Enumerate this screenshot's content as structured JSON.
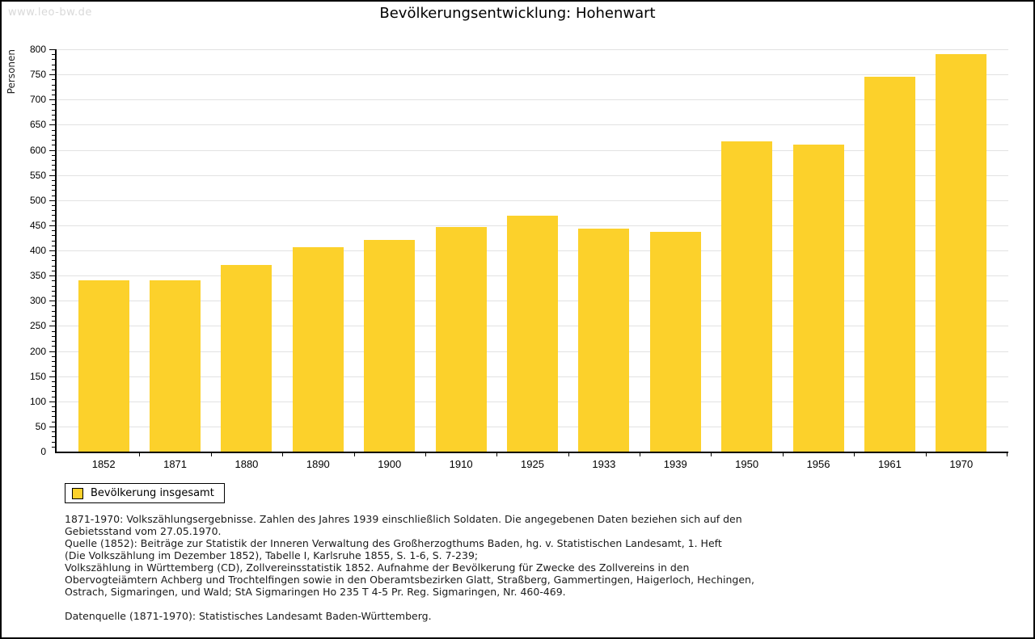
{
  "page": {
    "watermark": "www.leo-bw.de",
    "title": "Bevölkerungsentwicklung: Hohenwart"
  },
  "chart_data": {
    "type": "bar",
    "title": "Bevölkerungsentwicklung: Hohenwart",
    "xlabel": "",
    "ylabel": "Personen",
    "ylim": [
      0,
      800
    ],
    "ytick_step": 50,
    "yminor_step": 10,
    "grid": true,
    "legend_position": "bottom-left",
    "bar_color": "#fcd12b",
    "categories": [
      "1852",
      "1871",
      "1880",
      "1890",
      "1900",
      "1910",
      "1925",
      "1933",
      "1939",
      "1950",
      "1956",
      "1961",
      "1970"
    ],
    "series": [
      {
        "name": "Bevölkerung insgesamt",
        "values": [
          340,
          340,
          371,
          406,
          421,
          447,
          469,
          443,
          437,
          617,
          611,
          746,
          790
        ]
      }
    ]
  },
  "legend": {
    "label": "Bevölkerung insgesamt"
  },
  "footnotes": {
    "lines": [
      "1871-1970: Volkszählungsergebnisse. Zahlen des Jahres 1939 einschließlich Soldaten. Die angegebenen Daten beziehen sich auf den",
      "Gebietsstand vom 27.05.1970.",
      "Quelle (1852): Beiträge zur Statistik der Inneren Verwaltung des Großherzogthums Baden, hg. v. Statistischen Landesamt, 1. Heft",
      "(Die Volkszählung im Dezember 1852), Tabelle I, Karlsruhe 1855, S. 1-6, S. 7-239;",
      "Volkszählung in Württemberg (CD), Zollvereinsstatistik 1852. Aufnahme der Bevölkerung für Zwecke des Zollvereins in den",
      "Obervogteiämtern Achberg und Trochtelfingen sowie in den Oberamtsbezirken Glatt, Straßberg, Gammertingen, Haigerloch, Hechingen,",
      "Ostrach, Sigmaringen, und Wald; StA Sigmaringen Ho 235 T 4-5 Pr. Reg. Sigmaringen, Nr. 460-469."
    ],
    "datasource": "Datenquelle (1871-1970): Statistisches Landesamt Baden-Württemberg."
  }
}
